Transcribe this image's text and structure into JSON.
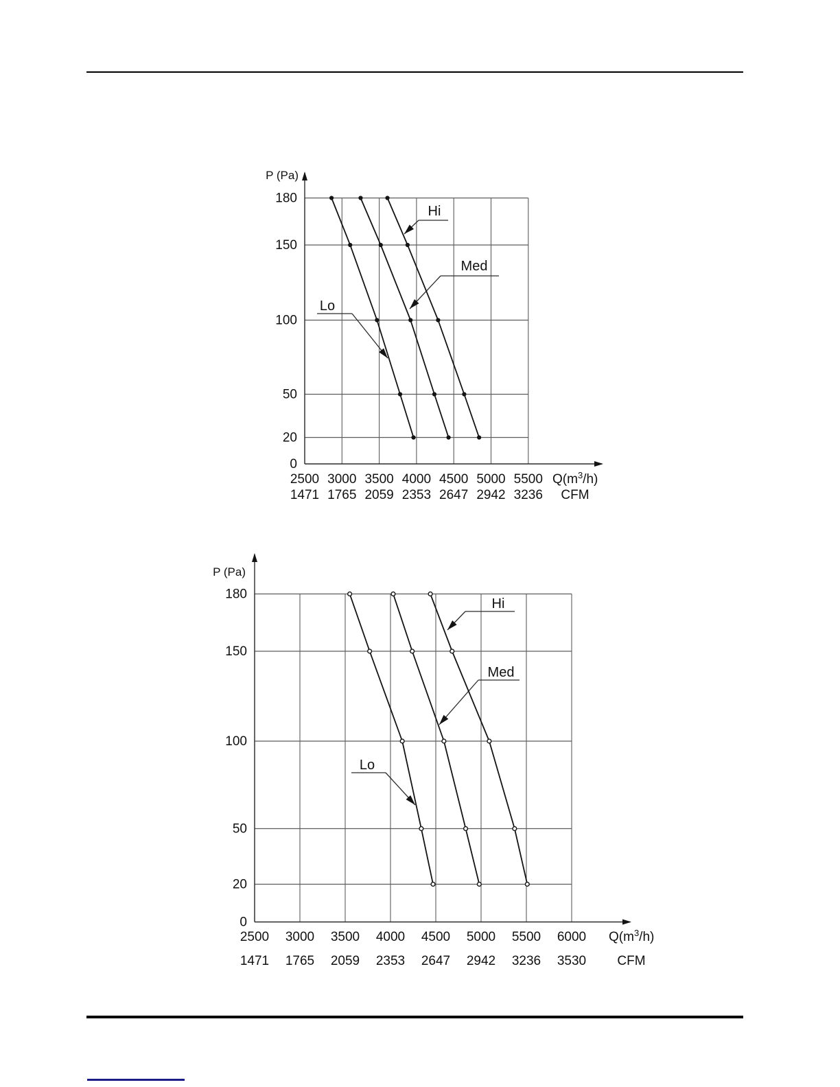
{
  "page": {
    "background": "#ffffff",
    "rule_color": "#000000",
    "link_underline_color": "#1b1b8a"
  },
  "chart_data": [
    {
      "type": "line",
      "id": "fan-performance-chart-1",
      "ylabel": "P (Pa)",
      "xlabel_unit": {
        "prefix": "Q(m",
        "sup": "3",
        "suffix": "/h)"
      },
      "xlabel_secondary": "CFM",
      "y_ticks": [
        180,
        150,
        100,
        50,
        20,
        0
      ],
      "x_ticks_m3h": [
        2500,
        3000,
        3500,
        4000,
        4500,
        5000,
        5500
      ],
      "x_ticks_cfm": [
        "1471",
        "1765",
        "2059",
        "2353",
        "2647",
        "2942",
        "3236"
      ],
      "x_range": [
        2500,
        5500
      ],
      "y_range": [
        0,
        180
      ],
      "grid": true,
      "marker": "dot",
      "legend_position": "callouts-on-curves",
      "series": [
        {
          "name": "Lo",
          "pressure_pa": [
            180,
            150,
            100,
            50,
            20
          ],
          "flow_m3h": [
            2860,
            3110,
            3470,
            3780,
            3960
          ]
        },
        {
          "name": "Med",
          "pressure_pa": [
            180,
            150,
            100,
            50,
            20
          ],
          "flow_m3h": [
            3250,
            3520,
            3920,
            4240,
            4430
          ]
        },
        {
          "name": "Hi",
          "pressure_pa": [
            180,
            150,
            100,
            50,
            20
          ],
          "flow_m3h": [
            3610,
            3880,
            4290,
            4640,
            4840
          ]
        }
      ]
    },
    {
      "type": "line",
      "id": "fan-performance-chart-2",
      "ylabel": "P (Pa)",
      "xlabel_unit": {
        "prefix": "Q(m",
        "sup": "3",
        "suffix": "/h)"
      },
      "xlabel_secondary": "CFM",
      "y_ticks": [
        180,
        150,
        100,
        50,
        20,
        0
      ],
      "x_ticks_m3h": [
        2500,
        3000,
        3500,
        4000,
        4500,
        5000,
        5500,
        6000
      ],
      "x_ticks_cfm": [
        "1471",
        "1765",
        "2059",
        "2353",
        "2647",
        "2942",
        "3236",
        "3530"
      ],
      "x_range": [
        2500,
        6000
      ],
      "y_range": [
        0,
        180
      ],
      "grid": true,
      "marker": "circle",
      "legend_position": "callouts-on-curves",
      "series": [
        {
          "name": "Lo",
          "pressure_pa": [
            180,
            150,
            100,
            50,
            20
          ],
          "flow_m3h": [
            3550,
            3770,
            4130,
            4340,
            4470
          ]
        },
        {
          "name": "Med",
          "pressure_pa": [
            180,
            150,
            100,
            50,
            20
          ],
          "flow_m3h": [
            4030,
            4240,
            4590,
            4830,
            4980
          ]
        },
        {
          "name": "Hi",
          "pressure_pa": [
            180,
            150,
            100,
            50,
            20
          ],
          "flow_m3h": [
            4440,
            4680,
            5090,
            5370,
            5510
          ]
        }
      ]
    }
  ]
}
